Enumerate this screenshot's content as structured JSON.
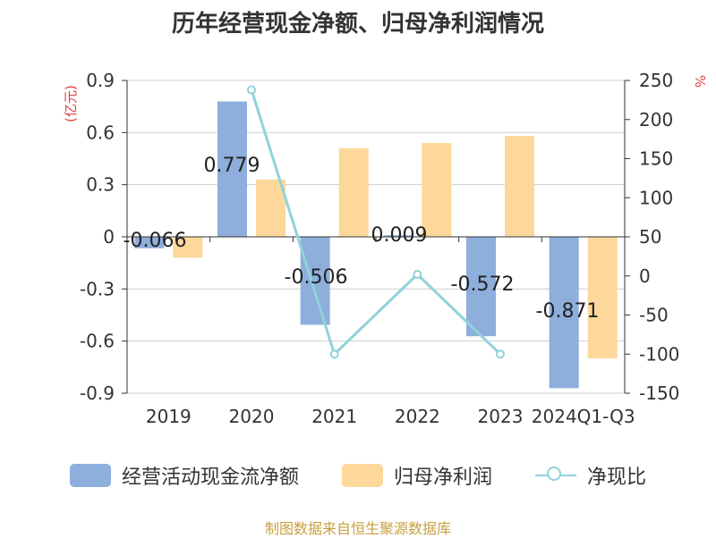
{
  "title": "历年经营现金净额、归母净利润情况",
  "left_unit": "(亿元)",
  "right_unit": "%",
  "source": "制图数据来自恒生聚源数据库",
  "colors": {
    "operating_cash": "#8eaedc",
    "net_profit": "#fdd89a",
    "ratio": "#8fd3d9",
    "unit_label": "#e04040",
    "source": "#c8a040"
  },
  "legend": [
    {
      "label": "经营活动现金流净额",
      "kind": "bar",
      "color": "#8eaedc"
    },
    {
      "label": "归母净利润",
      "kind": "bar",
      "color": "#fdd89a"
    },
    {
      "label": "净现比",
      "kind": "line",
      "color": "#8fd3d9"
    }
  ],
  "chart_data": {
    "type": "bar",
    "title": "历年经营现金净额、归母净利润情况",
    "categories": [
      "2019",
      "2020",
      "2021",
      "2022",
      "2023",
      "2024Q1-Q3"
    ],
    "y_left": {
      "label": "(亿元)",
      "lim": [
        -0.9,
        0.9
      ],
      "ticks": [
        -0.9,
        -0.6,
        -0.3,
        0,
        0.3,
        0.6,
        0.9
      ]
    },
    "y_right": {
      "label": "%",
      "lim": [
        -150,
        250
      ],
      "ticks": [
        -150,
        -100,
        -50,
        0,
        50,
        100,
        150,
        200,
        250
      ]
    },
    "series": [
      {
        "name": "经营活动现金流净额",
        "type": "bar",
        "axis": "left",
        "values": [
          -0.066,
          0.779,
          -0.506,
          0.009,
          -0.572,
          -0.871
        ],
        "labels": [
          "-0.066",
          "0.779",
          "-0.506",
          "0.009",
          "-0.572",
          "-0.871"
        ]
      },
      {
        "name": "归母净利润",
        "type": "bar",
        "axis": "left",
        "values": [
          -0.12,
          0.33,
          0.51,
          0.54,
          0.58,
          -0.7
        ]
      },
      {
        "name": "净现比",
        "type": "line",
        "axis": "right",
        "values": [
          null,
          238,
          -100,
          2,
          -100,
          null
        ]
      }
    ],
    "grid": true,
    "legend_position": "bottom"
  }
}
